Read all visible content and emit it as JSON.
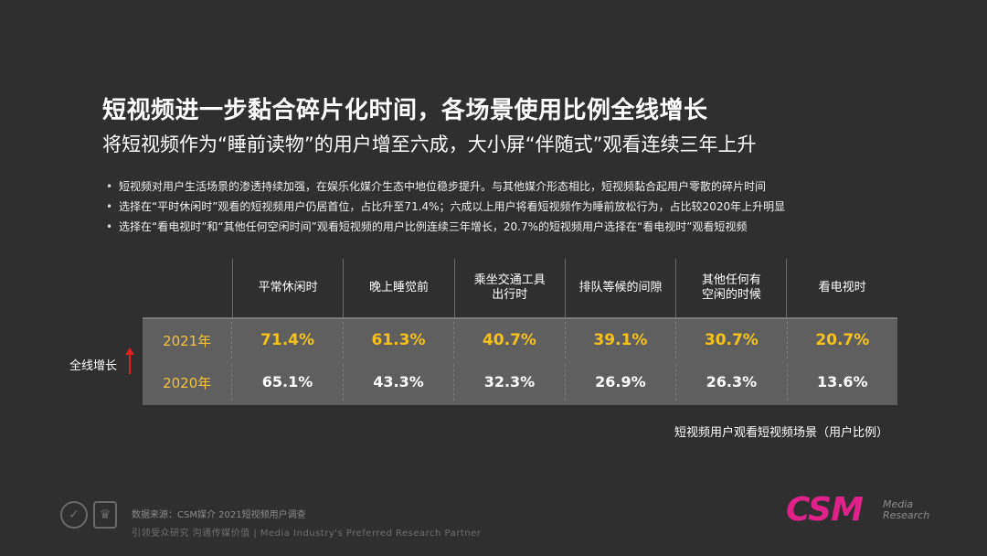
{
  "title": "短视频进一步黏合碎片化时间，各场景使用比例全线增长",
  "subtitle": "将短视频作为“睡前读物”的用户增至六成，大小屏“伴随式”观看连续三年上升",
  "bullets": [
    "短视频对用户生活场景的渗透持续加强，在娱乐化媒介生态中地位稳步提升。与其他媒介形态相比，短视频黏合起用户零散的碎片时间",
    "选择在“平时休闲时”观看的短视频用户仍居首位，占比升至71.4%；六成以上用户将看短视频作为睡前放松行为，占比较2020年上升明显",
    "选择在“看电视时”和“其他任何空闲时间”观看短视频的用户比例连续三年增长，20.7%的短视频用户选择在“看电视时”观看短视频"
  ],
  "table": {
    "headers": [
      "平常休闲时",
      "晚上睡觉前",
      "乘坐交通工具\n出行时",
      "排队等候的间隙",
      "其他任何有\n空闲的时候",
      "看电视时"
    ],
    "rows": [
      {
        "year": "2021年",
        "values": [
          "71.4%",
          "61.3%",
          "40.7%",
          "39.1%",
          "30.7%",
          "20.7%"
        ]
      },
      {
        "year": "2020年",
        "values": [
          "65.1%",
          "43.3%",
          "32.3%",
          "26.9%",
          "26.3%",
          "13.6%"
        ]
      }
    ]
  },
  "growth_label": "全线增长",
  "caption": "短视频用户观看短视频场景（用户比例）",
  "footer": {
    "source": "数据来源：CSM媒介 2021短视频用户调查",
    "slogan": "引领受众研究  沟通传媒价值 | Media Industry's Preferred Research Partner"
  },
  "logo": {
    "main": "CSM",
    "sub": "Media\nResearch"
  },
  "colors": {
    "background": "#2f2f2f",
    "highlight": "#f5c21b",
    "year": "#f5c242",
    "arrow": "#e02020",
    "logo": "#e0218a"
  }
}
